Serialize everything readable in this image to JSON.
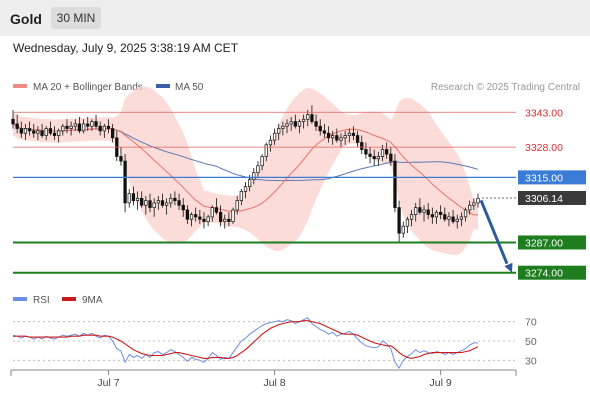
{
  "header": {
    "instrument": "Gold",
    "timeframe": "30 MIN",
    "datetime": "Wednesday, July 9, 2025 3:38:19 AM CET"
  },
  "legend": {
    "ma20_bb": "MA 20 + Bollinger Bands",
    "ma50": "MA 50",
    "credit": "Research © 2025 Trading Central",
    "rsi": "RSI",
    "rsi_ma": "9MA"
  },
  "colors": {
    "bollinger_band": "#fbd0cb",
    "ma20": "#e8736a",
    "ma50": "#5b78b8",
    "pivot_line": "#3a7bd5",
    "resistance": "#e06060",
    "support": "#1e7d1e",
    "arrow": "#2e5c9a",
    "rsi": "#6b8fe0",
    "rsi_ma": "#cc1a1a"
  },
  "chart_data": {
    "type": "candlestick",
    "timeframe": "30 MIN",
    "x_tick_labels": [
      "Jul 7",
      "Jul 8",
      "Jul 9"
    ],
    "price_ylim": [
      3270,
      3350
    ],
    "levels": [
      {
        "value": "3343.00",
        "type": "resistance"
      },
      {
        "value": "3328.00",
        "type": "resistance"
      },
      {
        "value": "3315.00",
        "type": "pivot"
      },
      {
        "value": "3306.14",
        "type": "last_price"
      },
      {
        "value": "3287.00",
        "type": "support"
      },
      {
        "value": "3274.00",
        "type": "support"
      }
    ],
    "forecast_arrow": {
      "from": 3306,
      "to": 3274
    },
    "candles": [
      [
        3340,
        3344,
        3336,
        3338
      ],
      [
        3338,
        3342,
        3334,
        3336
      ],
      [
        3336,
        3339,
        3332,
        3334
      ],
      [
        3334,
        3338,
        3331,
        3336
      ],
      [
        3336,
        3339,
        3333,
        3335
      ],
      [
        3335,
        3338,
        3332,
        3334
      ],
      [
        3334,
        3337,
        3331,
        3335
      ],
      [
        3335,
        3338,
        3332,
        3333
      ],
      [
        3333,
        3337,
        3331,
        3336
      ],
      [
        3336,
        3339,
        3333,
        3334
      ],
      [
        3334,
        3337,
        3331,
        3333
      ],
      [
        3333,
        3336,
        3330,
        3335
      ],
      [
        3335,
        3338,
        3333,
        3337
      ],
      [
        3337,
        3340,
        3334,
        3336
      ],
      [
        3336,
        3339,
        3333,
        3337
      ],
      [
        3337,
        3340,
        3335,
        3338
      ],
      [
        3338,
        3341,
        3334,
        3335
      ],
      [
        3335,
        3340,
        3334,
        3338
      ],
      [
        3338,
        3341,
        3335,
        3337
      ],
      [
        3337,
        3340,
        3335,
        3339
      ],
      [
        3339,
        3342,
        3336,
        3337
      ],
      [
        3337,
        3339,
        3333,
        3335
      ],
      [
        3335,
        3338,
        3332,
        3337
      ],
      [
        3337,
        3340,
        3334,
        3336
      ],
      [
        3336,
        3338,
        3330,
        3332
      ],
      [
        3332,
        3335,
        3322,
        3324
      ],
      [
        3324,
        3328,
        3320,
        3322
      ],
      [
        3322,
        3325,
        3300,
        3304
      ],
      [
        3304,
        3310,
        3302,
        3308
      ],
      [
        3308,
        3311,
        3303,
        3305
      ],
      [
        3305,
        3309,
        3301,
        3306
      ],
      [
        3306,
        3309,
        3302,
        3303
      ],
      [
        3303,
        3307,
        3299,
        3305
      ],
      [
        3305,
        3308,
        3300,
        3302
      ],
      [
        3302,
        3306,
        3298,
        3304
      ],
      [
        3304,
        3307,
        3301,
        3305
      ],
      [
        3305,
        3308,
        3302,
        3303
      ],
      [
        3303,
        3306,
        3299,
        3304
      ],
      [
        3304,
        3308,
        3302,
        3306
      ],
      [
        3306,
        3309,
        3303,
        3305
      ],
      [
        3305,
        3308,
        3301,
        3303
      ],
      [
        3303,
        3306,
        3298,
        3301
      ],
      [
        3301,
        3303,
        3295,
        3297
      ],
      [
        3297,
        3300,
        3294,
        3299
      ],
      [
        3299,
        3302,
        3296,
        3298
      ],
      [
        3298,
        3301,
        3295,
        3297
      ],
      [
        3297,
        3300,
        3293,
        3296
      ],
      [
        3296,
        3299,
        3294,
        3298
      ],
      [
        3298,
        3303,
        3296,
        3302
      ],
      [
        3302,
        3306,
        3299,
        3300
      ],
      [
        3300,
        3303,
        3294,
        3296
      ],
      [
        3296,
        3299,
        3293,
        3297
      ],
      [
        3297,
        3300,
        3294,
        3296
      ],
      [
        3296,
        3302,
        3295,
        3301
      ],
      [
        3301,
        3307,
        3299,
        3305
      ],
      [
        3305,
        3310,
        3303,
        3309
      ],
      [
        3309,
        3313,
        3306,
        3311
      ],
      [
        3311,
        3316,
        3309,
        3314
      ],
      [
        3314,
        3319,
        3312,
        3317
      ],
      [
        3317,
        3322,
        3315,
        3320
      ],
      [
        3320,
        3325,
        3318,
        3324
      ],
      [
        3324,
        3330,
        3322,
        3329
      ],
      [
        3329,
        3333,
        3326,
        3331
      ],
      [
        3331,
        3336,
        3329,
        3334
      ],
      [
        3334,
        3338,
        3331,
        3336
      ],
      [
        3336,
        3339,
        3333,
        3337
      ],
      [
        3337,
        3340,
        3334,
        3338
      ],
      [
        3338,
        3341,
        3335,
        3339
      ],
      [
        3339,
        3342,
        3336,
        3337
      ],
      [
        3337,
        3340,
        3334,
        3339
      ],
      [
        3339,
        3342,
        3336,
        3340
      ],
      [
        3340,
        3344,
        3337,
        3342
      ],
      [
        3342,
        3346,
        3338,
        3339
      ],
      [
        3339,
        3342,
        3335,
        3337
      ],
      [
        3337,
        3340,
        3333,
        3335
      ],
      [
        3335,
        3338,
        3332,
        3334
      ],
      [
        3334,
        3337,
        3330,
        3332
      ],
      [
        3332,
        3335,
        3329,
        3333
      ],
      [
        3333,
        3336,
        3330,
        3331
      ],
      [
        3331,
        3334,
        3328,
        3332
      ],
      [
        3332,
        3335,
        3329,
        3333
      ],
      [
        3333,
        3336,
        3330,
        3334
      ],
      [
        3334,
        3337,
        3331,
        3333
      ],
      [
        3333,
        3335,
        3328,
        3330
      ],
      [
        3330,
        3333,
        3325,
        3327
      ],
      [
        3327,
        3330,
        3323,
        3325
      ],
      [
        3325,
        3328,
        3321,
        3324
      ],
      [
        3324,
        3327,
        3320,
        3323
      ],
      [
        3323,
        3326,
        3320,
        3324
      ],
      [
        3324,
        3329,
        3322,
        3327
      ],
      [
        3327,
        3330,
        3323,
        3325
      ],
      [
        3325,
        3328,
        3320,
        3322
      ],
      [
        3322,
        3325,
        3300,
        3302
      ],
      [
        3302,
        3305,
        3287,
        3291
      ],
      [
        3291,
        3296,
        3289,
        3294
      ],
      [
        3294,
        3298,
        3291,
        3297
      ],
      [
        3297,
        3301,
        3294,
        3299
      ],
      [
        3299,
        3304,
        3296,
        3302
      ],
      [
        3302,
        3306,
        3299,
        3300
      ],
      [
        3300,
        3303,
        3296,
        3301
      ],
      [
        3301,
        3304,
        3297,
        3299
      ],
      [
        3299,
        3302,
        3295,
        3298
      ],
      [
        3298,
        3301,
        3295,
        3300
      ],
      [
        3300,
        3303,
        3297,
        3299
      ],
      [
        3299,
        3302,
        3296,
        3297
      ],
      [
        3297,
        3300,
        3294,
        3298
      ],
      [
        3298,
        3301,
        3295,
        3296
      ],
      [
        3296,
        3299,
        3293,
        3297
      ],
      [
        3297,
        3300,
        3294,
        3298
      ],
      [
        3298,
        3302,
        3296,
        3301
      ],
      [
        3301,
        3305,
        3299,
        3303
      ],
      [
        3303,
        3306,
        3301,
        3304
      ],
      [
        3304,
        3308,
        3302,
        3306
      ]
    ],
    "rsi_ticks": [
      "70",
      "50",
      "30"
    ],
    "rsi_ylim": [
      20,
      80
    ],
    "rsi": [
      56,
      55,
      53,
      55,
      54,
      52,
      54,
      52,
      55,
      53,
      52,
      54,
      56,
      55,
      56,
      57,
      55,
      58,
      56,
      58,
      55,
      53,
      56,
      55,
      50,
      42,
      40,
      28,
      36,
      33,
      35,
      32,
      36,
      33,
      38,
      39,
      36,
      38,
      41,
      39,
      36,
      33,
      29,
      33,
      31,
      30,
      28,
      32,
      38,
      35,
      31,
      33,
      32,
      38,
      44,
      50,
      53,
      57,
      60,
      63,
      66,
      68,
      69,
      70,
      71,
      70,
      72,
      71,
      68,
      70,
      72,
      74,
      68,
      65,
      62,
      60,
      57,
      59,
      55,
      57,
      58,
      60,
      57,
      52,
      48,
      45,
      44,
      43,
      44,
      50,
      47,
      42,
      28,
      22,
      30,
      34,
      37,
      41,
      38,
      40,
      38,
      37,
      39,
      38,
      36,
      38,
      36,
      38,
      40,
      42,
      46,
      48,
      48
    ],
    "rsi_ma": [
      55,
      55,
      55,
      55,
      54,
      54,
      54,
      54,
      54,
      54,
      54,
      54,
      54,
      54,
      55,
      55,
      55,
      56,
      56,
      56,
      56,
      55,
      55,
      55,
      54,
      52,
      50,
      47,
      44,
      41,
      39,
      37,
      36,
      35,
      35,
      35,
      35,
      36,
      37,
      38,
      38,
      37,
      36,
      35,
      34,
      33,
      32,
      32,
      33,
      33,
      33,
      32,
      32,
      33,
      35,
      38,
      41,
      45,
      49,
      53,
      57,
      60,
      63,
      65,
      67,
      68,
      69,
      70,
      70,
      70,
      71,
      71,
      70,
      69,
      68,
      66,
      64,
      62,
      60,
      58,
      57,
      57,
      57,
      56,
      54,
      52,
      50,
      48,
      47,
      46,
      45,
      45,
      42,
      38,
      35,
      33,
      32,
      33,
      34,
      36,
      37,
      38,
      38,
      38,
      38,
      38,
      38,
      38,
      38,
      39,
      40,
      42,
      44
    ]
  }
}
